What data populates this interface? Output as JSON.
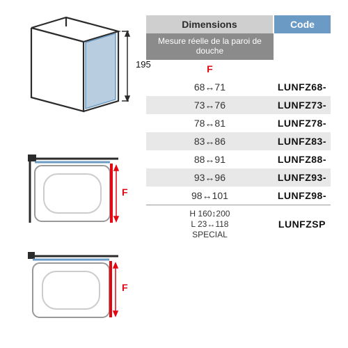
{
  "header": {
    "dimensions": "Dimensions",
    "code": "Code"
  },
  "subheader": "Mesure réelle de la paroi de douche",
  "f_label": "F",
  "rows": [
    {
      "dim": "68↔71",
      "code": "LUNFZ68-",
      "alt": false
    },
    {
      "dim": "73↔76",
      "code": "LUNFZ73-",
      "alt": true
    },
    {
      "dim": "78↔81",
      "code": "LUNFZ78-",
      "alt": false
    },
    {
      "dim": "83↔86",
      "code": "LUNFZ83-",
      "alt": true
    },
    {
      "dim": "88↔91",
      "code": "LUNFZ88-",
      "alt": false
    },
    {
      "dim": "93↔96",
      "code": "LUNFZ93-",
      "alt": true
    },
    {
      "dim": "98↔101",
      "code": "LUNFZ98-",
      "alt": false
    }
  ],
  "special": {
    "dim": "H 160↕200\nL 23↔118\nSPECIAL",
    "code": "LUNFZSP"
  },
  "drawings": {
    "height_label": "195",
    "f_marker": "F",
    "colors": {
      "line": "#2b2b2b",
      "glass_fill": "#b8cde0",
      "glass_stroke": "#6b9bc4",
      "tray_fill": "#ffffff",
      "red": "#e30613",
      "grey": "#999999"
    }
  },
  "style": {
    "header_dim_bg": "#cfcfcf",
    "header_code_bg": "#6b9bc4",
    "subhead_bg": "#8b8b8b",
    "alt_bg": "#e8e8e8",
    "text": "#111111",
    "f_color": "#e30613"
  }
}
